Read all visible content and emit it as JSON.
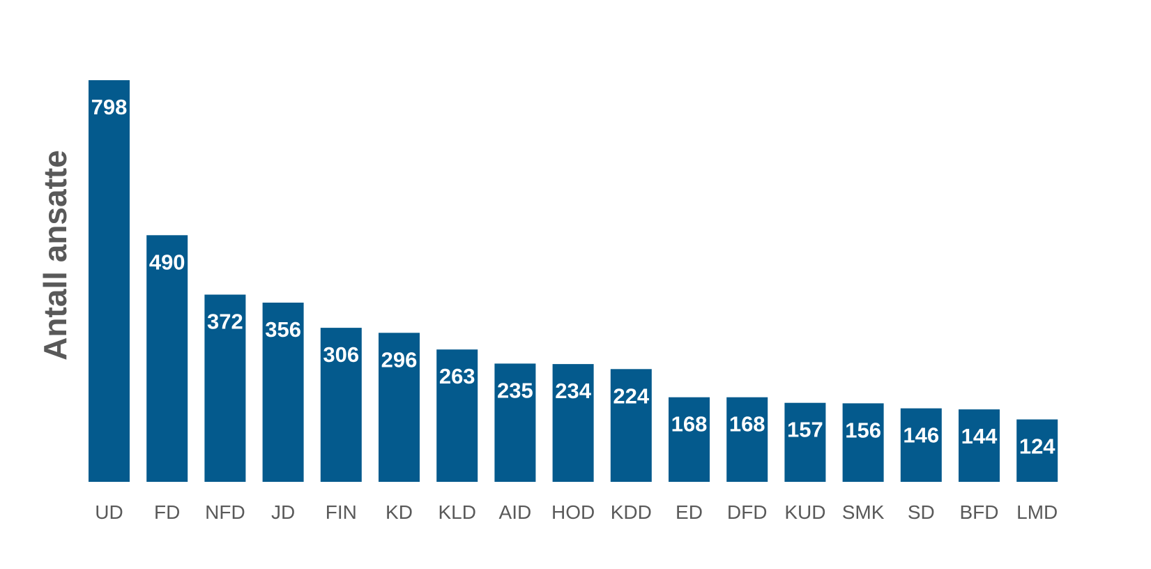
{
  "chart_data": {
    "type": "bar",
    "title": "",
    "xlabel": "",
    "ylabel": "Antall ansatte",
    "categories": [
      "UD",
      "FD",
      "NFD",
      "JD",
      "FIN",
      "KD",
      "KLD",
      "AID",
      "HOD",
      "KDD",
      "ED",
      "DFD",
      "KUD",
      "SMK",
      "SD",
      "BFD",
      "LMD"
    ],
    "values": [
      798,
      490,
      372,
      356,
      306,
      296,
      263,
      235,
      234,
      224,
      168,
      168,
      157,
      156,
      146,
      144,
      124
    ],
    "ylim": [
      0,
      800
    ],
    "grid": false,
    "legend": "none",
    "data_labels": "inside-top",
    "colors": {
      "bar": "#045a8d",
      "bar_label": "#ffffff",
      "axis_text": "#595959"
    }
  }
}
